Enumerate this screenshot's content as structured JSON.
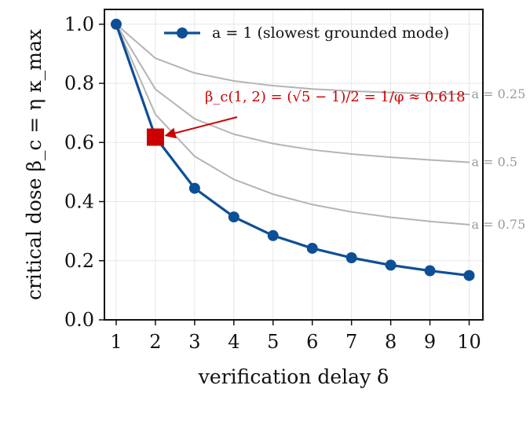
{
  "chart_data": {
    "type": "line",
    "title": "",
    "xlabel": "verification delay δ",
    "ylabel": "critical dose β_c = η κ_max",
    "x": [
      1,
      2,
      3,
      4,
      5,
      6,
      7,
      8,
      9,
      10
    ],
    "xlim": [
      0.7,
      10.35
    ],
    "ylim": [
      0.0,
      1.05
    ],
    "xticks": [
      "1",
      "2",
      "3",
      "4",
      "5",
      "6",
      "7",
      "8",
      "9",
      "10"
    ],
    "yticks": [
      "0.0",
      "0.2",
      "0.4",
      "0.6",
      "0.8",
      "1.0"
    ],
    "grid": true,
    "legend": {
      "position": "top-right",
      "entries": [
        "a = 1 (slowest grounded mode)"
      ]
    },
    "series": [
      {
        "name": "a = 1 (slowest grounded mode)",
        "color": "#0d4f96",
        "marker": "circle",
        "values": [
          1.0,
          0.618,
          0.445,
          0.348,
          0.285,
          0.242,
          0.21,
          0.185,
          0.166,
          0.15
        ]
      },
      {
        "name": "a = 0.25",
        "color": "#b4b4b4",
        "marker": "none",
        "values": [
          1.0,
          0.885,
          0.835,
          0.808,
          0.792,
          0.781,
          0.774,
          0.769,
          0.765,
          0.763
        ]
      },
      {
        "name": "a = 0.5",
        "color": "#b4b4b4",
        "marker": "none",
        "values": [
          1.0,
          0.78,
          0.68,
          0.628,
          0.596,
          0.575,
          0.561,
          0.55,
          0.541,
          0.533
        ]
      },
      {
        "name": "a = 0.75",
        "color": "#b4b4b4",
        "marker": "none",
        "values": [
          1.0,
          0.695,
          0.553,
          0.475,
          0.425,
          0.39,
          0.365,
          0.347,
          0.333,
          0.322
        ]
      }
    ],
    "curve_labels": [
      {
        "series": "a = 0.25",
        "text": "a = 0.25"
      },
      {
        "series": "a = 0.5",
        "text": "a = 0.5"
      },
      {
        "series": "a = 0.75",
        "text": "a = 0.75"
      }
    ],
    "highlight": {
      "x": 2,
      "y": 0.618,
      "marker": "square",
      "color": "#cc0000"
    },
    "annotation": {
      "text": "β_c(1, 2) = (√5 − 1)/2 = 1/φ ≈ 0.618",
      "color": "#cc0000",
      "target_x": 2,
      "target_y": 0.618
    }
  }
}
